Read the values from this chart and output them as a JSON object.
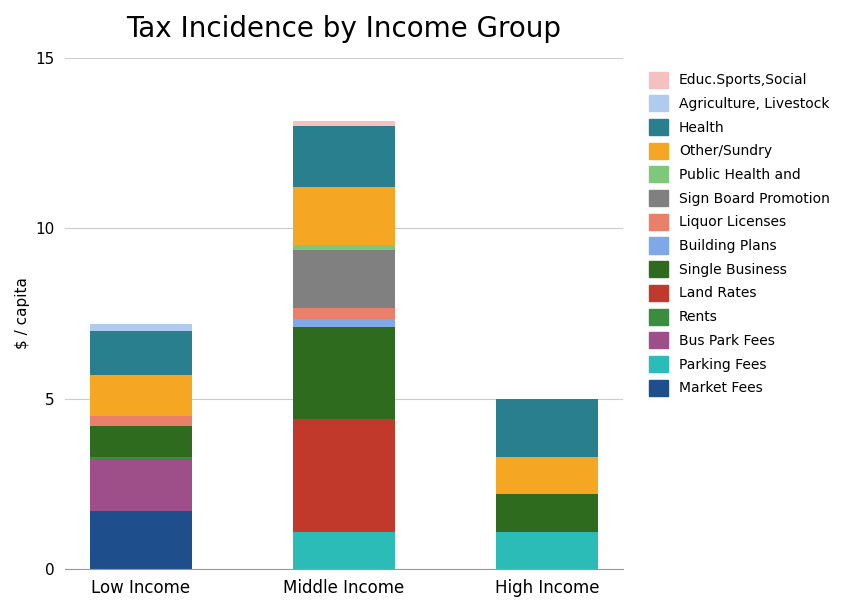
{
  "title": "Tax Incidence by Income Group",
  "ylabel": "$ / capita",
  "categories": [
    "Low Income",
    "Middle Income",
    "High Income"
  ],
  "ylim": [
    0,
    15
  ],
  "yticks": [
    0,
    5,
    10,
    15
  ],
  "background_color": "#ffffff",
  "series": [
    {
      "name": "Market Fees",
      "color": "#1f4e8c",
      "values": [
        1.7,
        0.0,
        0.0
      ]
    },
    {
      "name": "Parking Fees",
      "color": "#2bbcb8",
      "values": [
        0.0,
        1.1,
        1.1
      ]
    },
    {
      "name": "Bus Park Fees",
      "color": "#9e4f8a",
      "values": [
        1.5,
        0.0,
        0.0
      ]
    },
    {
      "name": "Rents",
      "color": "#3a8c3f",
      "values": [
        0.1,
        0.0,
        0.0
      ]
    },
    {
      "name": "Land Rates",
      "color": "#c0392b",
      "values": [
        0.0,
        3.3,
        0.0
      ]
    },
    {
      "name": "Single Business",
      "color": "#2e6b1f",
      "values": [
        0.9,
        2.7,
        1.1
      ]
    },
    {
      "name": "Building Plans",
      "color": "#7fa8e8",
      "values": [
        0.0,
        0.25,
        0.0
      ]
    },
    {
      "name": "Liquor Licenses",
      "color": "#e8806a",
      "values": [
        0.3,
        0.3,
        0.0
      ]
    },
    {
      "name": "Sign Board Promotion",
      "color": "#808080",
      "values": [
        0.0,
        1.7,
        0.0
      ]
    },
    {
      "name": "Public Health and",
      "color": "#7dc87a",
      "values": [
        0.0,
        0.15,
        0.0
      ]
    },
    {
      "name": "Other/Sundry",
      "color": "#f5a623",
      "values": [
        1.2,
        1.7,
        1.1
      ]
    },
    {
      "name": "Health",
      "color": "#2a7f8f",
      "values": [
        1.3,
        1.8,
        1.7
      ]
    },
    {
      "name": "Agriculture, Livestock",
      "color": "#b0caf0",
      "values": [
        0.2,
        0.0,
        0.0
      ]
    },
    {
      "name": "Educ.Sports,Social",
      "color": "#f5c0c0",
      "values": [
        0.0,
        0.15,
        0.0
      ]
    }
  ]
}
